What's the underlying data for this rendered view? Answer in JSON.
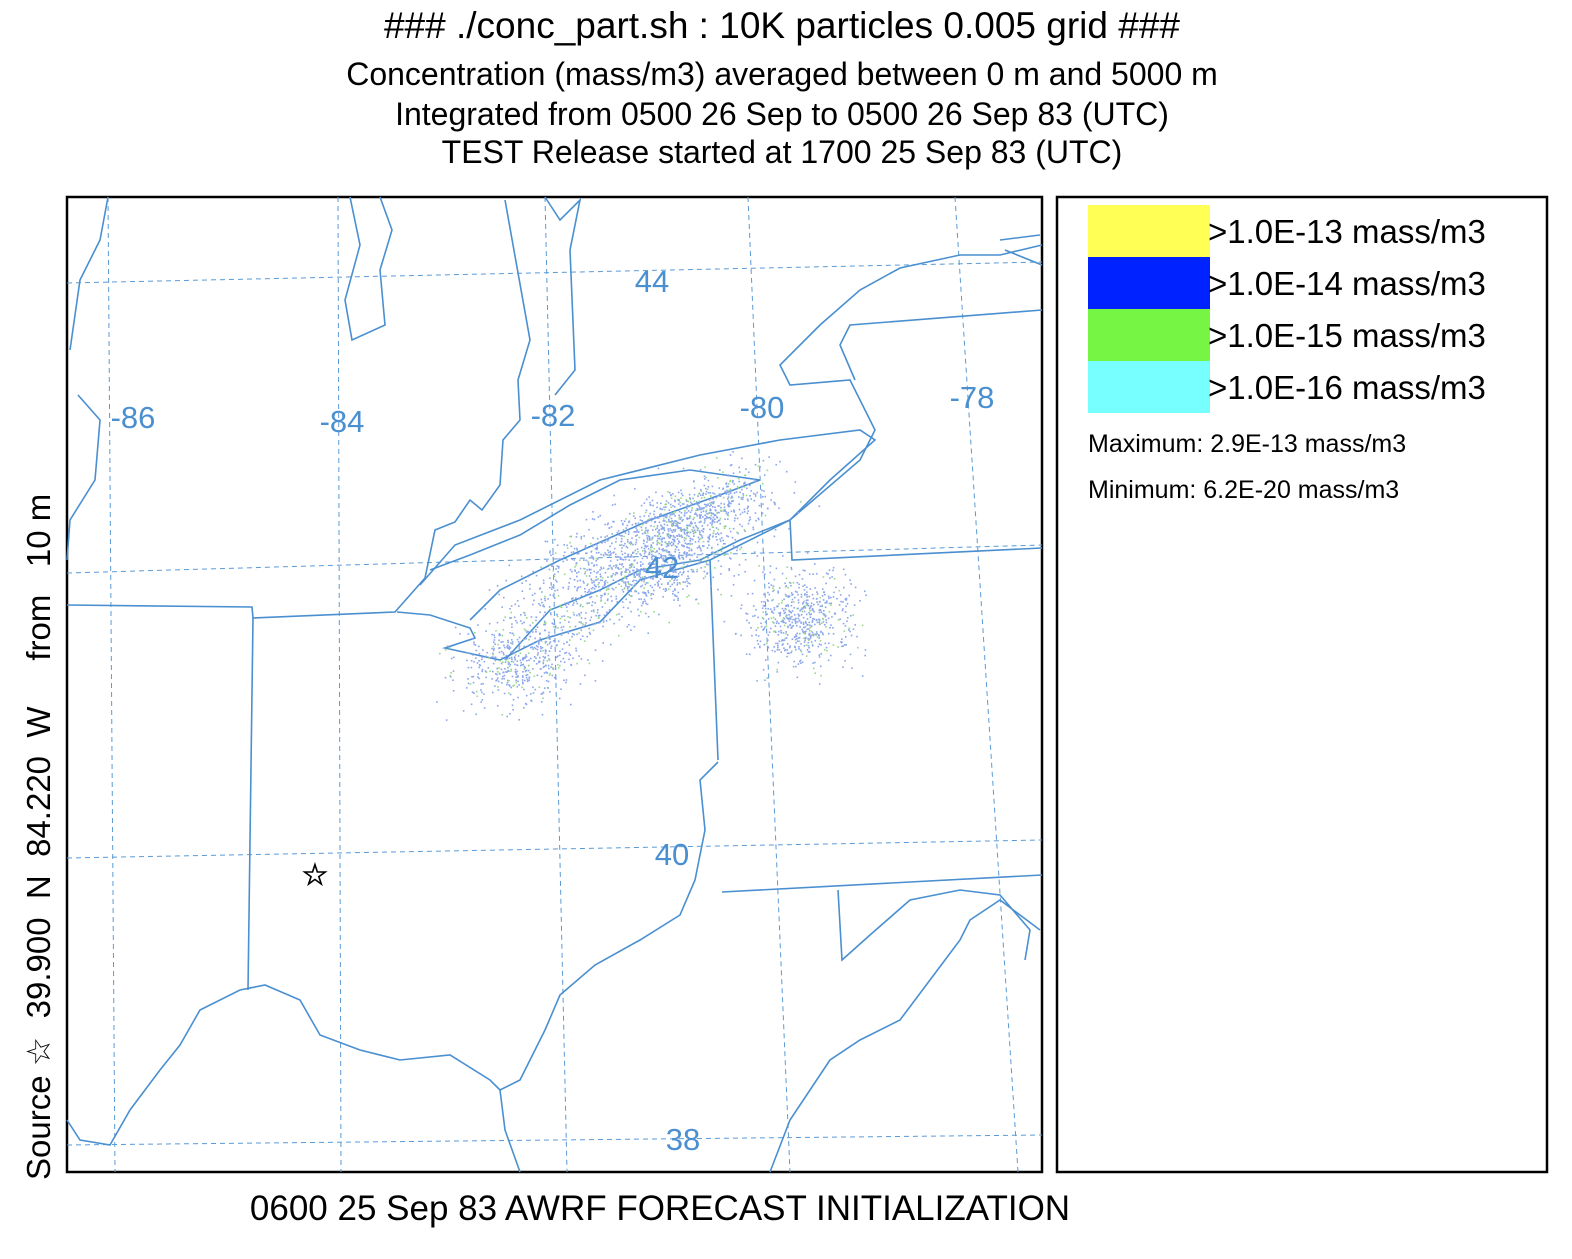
{
  "header": {
    "lines": [
      "### ./conc_part.sh : 10K particles 0.005 grid ###",
      "Concentration  (mass/m3) averaged between     0 m and  5000 m",
      "Integrated from 0500 26 Sep to 0500 26 Sep 83 (UTC)",
      "TEST Release started at 1700 25 Sep 83 (UTC)"
    ]
  },
  "side_label": "Source ☆  39.900  N  84.220  W     from   10 m",
  "map": {
    "longitude_labels": [
      "-86",
      "-84",
      "-82",
      "-80",
      "-78"
    ],
    "latitude_labels": [
      "44",
      "42",
      "40",
      "38"
    ]
  },
  "legend": {
    "entries": [
      {
        "label": ">1.0E-13 mass/m3",
        "color": "#ffff55"
      },
      {
        "label": ">1.0E-14 mass/m3",
        "color": "#0022ff"
      },
      {
        "label": ">1.0E-15 mass/m3",
        "color": "#77f544"
      },
      {
        "label": ">1.0E-16 mass/m3",
        "color": "#77ffff"
      }
    ],
    "maximum": "Maximum: 2.9E-13 mass/m3",
    "minimum": "Minimum: 6.2E-20 mass/m3"
  },
  "footer": "0600 25 Sep 83 AWRF FORECAST INITIALIZATION"
}
